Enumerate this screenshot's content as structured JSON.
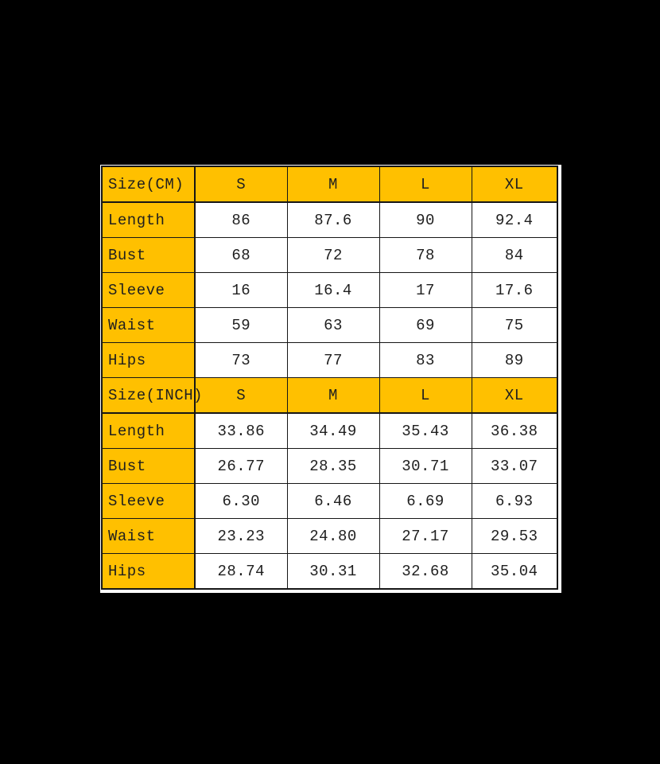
{
  "colors": {
    "background": "#000000",
    "header_bg": "#FFC000",
    "cell_bg": "#FFFFFF",
    "border": "#161616",
    "text": "#1F1F1F"
  },
  "chart_data": {
    "type": "table",
    "title": "Garment size chart in CM and INCH",
    "legend_position": "none",
    "grid": true,
    "sections": [
      {
        "unit": "CM",
        "header": {
          "label": "Size(CM)",
          "columns": [
            "S",
            "M",
            "L",
            "XL"
          ]
        },
        "rows": [
          {
            "label": "Length",
            "values": [
              "86",
              "87.6",
              "90",
              "92.4"
            ]
          },
          {
            "label": "Bust",
            "values": [
              "68",
              "72",
              "78",
              "84"
            ]
          },
          {
            "label": "Sleeve",
            "values": [
              "16",
              "16.4",
              "17",
              "17.6"
            ]
          },
          {
            "label": "Waist",
            "values": [
              "59",
              "63",
              "69",
              "75"
            ]
          },
          {
            "label": "Hips",
            "values": [
              "73",
              "77",
              "83",
              "89"
            ]
          }
        ]
      },
      {
        "unit": "INCH",
        "header": {
          "label": "Size(INCH)",
          "columns": [
            "S",
            "M",
            "L",
            "XL"
          ]
        },
        "rows": [
          {
            "label": "Length",
            "values": [
              "33.86",
              "34.49",
              "35.43",
              "36.38"
            ]
          },
          {
            "label": "Bust",
            "values": [
              "26.77",
              "28.35",
              "30.71",
              "33.07"
            ]
          },
          {
            "label": "Sleeve",
            "values": [
              "6.30",
              "6.46",
              "6.69",
              "6.93"
            ]
          },
          {
            "label": "Waist",
            "values": [
              "23.23",
              "24.80",
              "27.17",
              "29.53"
            ]
          },
          {
            "label": "Hips",
            "values": [
              "28.74",
              "30.31",
              "32.68",
              "35.04"
            ]
          }
        ]
      }
    ]
  }
}
